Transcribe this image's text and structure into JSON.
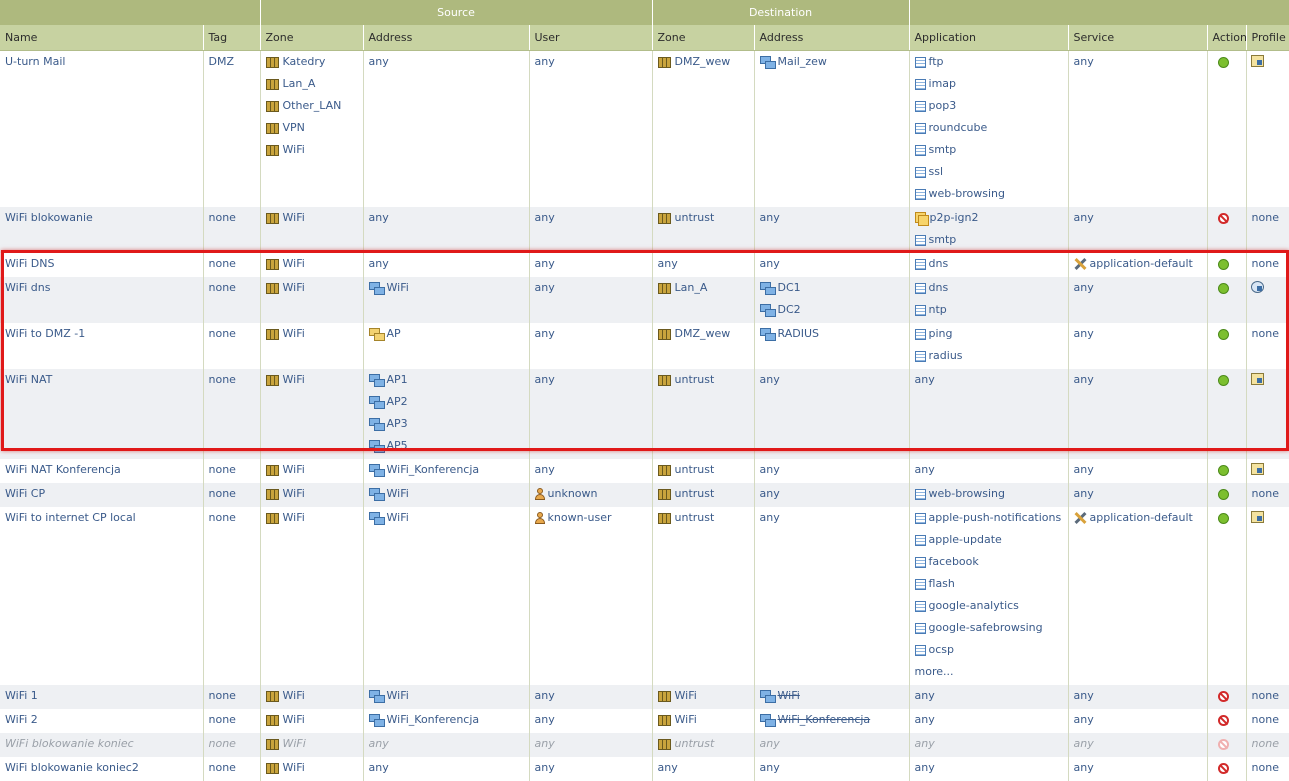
{
  "header": {
    "group_source": "Source",
    "group_destination": "Destination",
    "columns": [
      "Name",
      "Tag",
      "Zone",
      "Address",
      "User",
      "Zone",
      "Address",
      "Application",
      "Service",
      "Action",
      "Profile"
    ]
  },
  "rules": [
    {
      "name": "U-turn Mail",
      "tag": "DMZ",
      "src_zone": [
        "Katedry",
        "Lan_A",
        "Other_LAN",
        "VPN",
        "WiFi"
      ],
      "src_addr": [
        {
          "t": "text",
          "v": "any"
        }
      ],
      "user": [
        {
          "t": "text",
          "v": "any"
        }
      ],
      "dst_zone": [
        {
          "t": "zone",
          "v": "DMZ_wew"
        }
      ],
      "dst_addr": [
        {
          "t": "addr",
          "v": "Mail_zew"
        }
      ],
      "app": [
        {
          "t": "app",
          "v": "ftp"
        },
        {
          "t": "app",
          "v": "imap"
        },
        {
          "t": "app",
          "v": "pop3"
        },
        {
          "t": "app",
          "v": "roundcube"
        },
        {
          "t": "app",
          "v": "smtp"
        },
        {
          "t": "app",
          "v": "ssl"
        },
        {
          "t": "app",
          "v": "web-browsing"
        }
      ],
      "service": [
        {
          "t": "text",
          "v": "any"
        }
      ],
      "action": "allow",
      "profile": "group"
    },
    {
      "name": "WiFi blokowanie",
      "tag": "none",
      "src_zone": [
        "WiFi"
      ],
      "src_addr": [
        {
          "t": "text",
          "v": "any"
        }
      ],
      "user": [
        {
          "t": "text",
          "v": "any"
        }
      ],
      "dst_zone": [
        {
          "t": "zone",
          "v": "untrust"
        }
      ],
      "dst_addr": [
        {
          "t": "text",
          "v": "any"
        }
      ],
      "app": [
        {
          "t": "appgrp",
          "v": "p2p-ign2"
        },
        {
          "t": "app",
          "v": "smtp"
        }
      ],
      "service": [
        {
          "t": "text",
          "v": "any"
        }
      ],
      "action": "deny",
      "profile": "none"
    },
    {
      "name": "WiFi DNS",
      "tag": "none",
      "src_zone": [
        "WiFi"
      ],
      "src_addr": [
        {
          "t": "text",
          "v": "any"
        }
      ],
      "user": [
        {
          "t": "text",
          "v": "any"
        }
      ],
      "dst_zone": [
        {
          "t": "text",
          "v": "any"
        }
      ],
      "dst_addr": [
        {
          "t": "text",
          "v": "any"
        }
      ],
      "app": [
        {
          "t": "app",
          "v": "dns"
        }
      ],
      "service": [
        {
          "t": "svc",
          "v": "application-default"
        }
      ],
      "action": "allow",
      "profile": "none"
    },
    {
      "name": "WiFi dns",
      "tag": "none",
      "src_zone": [
        "WiFi"
      ],
      "src_addr": [
        {
          "t": "addr",
          "v": "WiFi"
        }
      ],
      "user": [
        {
          "t": "text",
          "v": "any"
        }
      ],
      "dst_zone": [
        {
          "t": "zone",
          "v": "Lan_A"
        }
      ],
      "dst_addr": [
        {
          "t": "addr",
          "v": "DC1"
        },
        {
          "t": "addr",
          "v": "DC2"
        }
      ],
      "app": [
        {
          "t": "app",
          "v": "dns"
        },
        {
          "t": "app",
          "v": "ntp"
        }
      ],
      "service": [
        {
          "t": "text",
          "v": "any"
        }
      ],
      "action": "allow",
      "profile": "mag"
    },
    {
      "name": "WiFi to DMZ -1",
      "tag": "none",
      "src_zone": [
        "WiFi"
      ],
      "src_addr": [
        {
          "t": "addrgrp",
          "v": "AP"
        }
      ],
      "user": [
        {
          "t": "text",
          "v": "any"
        }
      ],
      "dst_zone": [
        {
          "t": "zone",
          "v": "DMZ_wew"
        }
      ],
      "dst_addr": [
        {
          "t": "addr",
          "v": "RADIUS"
        }
      ],
      "app": [
        {
          "t": "app",
          "v": "ping"
        },
        {
          "t": "app",
          "v": "radius"
        }
      ],
      "service": [
        {
          "t": "text",
          "v": "any"
        }
      ],
      "action": "allow",
      "profile": "none"
    },
    {
      "name": "WiFi NAT",
      "tag": "none",
      "src_zone": [
        "WiFi"
      ],
      "src_addr": [
        {
          "t": "addr",
          "v": "AP1"
        },
        {
          "t": "addr",
          "v": "AP2"
        },
        {
          "t": "addr",
          "v": "AP3"
        },
        {
          "t": "addr",
          "v": "AP5"
        }
      ],
      "user": [
        {
          "t": "text",
          "v": "any"
        }
      ],
      "dst_zone": [
        {
          "t": "zone",
          "v": "untrust"
        }
      ],
      "dst_addr": [
        {
          "t": "text",
          "v": "any"
        }
      ],
      "app": [
        {
          "t": "text",
          "v": "any"
        }
      ],
      "service": [
        {
          "t": "text",
          "v": "any"
        }
      ],
      "action": "allow",
      "profile": "group"
    },
    {
      "name": "WiFi NAT Konferencja",
      "tag": "none",
      "src_zone": [
        "WiFi"
      ],
      "src_addr": [
        {
          "t": "addr",
          "v": "WiFi_Konferencja"
        }
      ],
      "user": [
        {
          "t": "text",
          "v": "any"
        }
      ],
      "dst_zone": [
        {
          "t": "zone",
          "v": "untrust"
        }
      ],
      "dst_addr": [
        {
          "t": "text",
          "v": "any"
        }
      ],
      "app": [
        {
          "t": "text",
          "v": "any"
        }
      ],
      "service": [
        {
          "t": "text",
          "v": "any"
        }
      ],
      "action": "allow",
      "profile": "group"
    },
    {
      "name": "WiFi CP",
      "tag": "none",
      "src_zone": [
        "WiFi"
      ],
      "src_addr": [
        {
          "t": "addr",
          "v": "WiFi"
        }
      ],
      "user": [
        {
          "t": "user",
          "v": "unknown"
        }
      ],
      "dst_zone": [
        {
          "t": "zone",
          "v": "untrust"
        }
      ],
      "dst_addr": [
        {
          "t": "text",
          "v": "any"
        }
      ],
      "app": [
        {
          "t": "app",
          "v": "web-browsing"
        }
      ],
      "service": [
        {
          "t": "text",
          "v": "any"
        }
      ],
      "action": "allow",
      "profile": "none"
    },
    {
      "name": "WiFi to internet CP local",
      "tag": "none",
      "src_zone": [
        "WiFi"
      ],
      "src_addr": [
        {
          "t": "addr",
          "v": "WiFi"
        }
      ],
      "user": [
        {
          "t": "user",
          "v": "known-user"
        }
      ],
      "dst_zone": [
        {
          "t": "zone",
          "v": "untrust"
        }
      ],
      "dst_addr": [
        {
          "t": "text",
          "v": "any"
        }
      ],
      "app": [
        {
          "t": "app",
          "v": "apple-push-notifications"
        },
        {
          "t": "app",
          "v": "apple-update"
        },
        {
          "t": "app",
          "v": "facebook"
        },
        {
          "t": "app",
          "v": "flash"
        },
        {
          "t": "app",
          "v": "google-analytics"
        },
        {
          "t": "app",
          "v": "google-safebrowsing"
        },
        {
          "t": "app",
          "v": "ocsp"
        },
        {
          "t": "text",
          "v": "more..."
        }
      ],
      "service": [
        {
          "t": "svc",
          "v": "application-default"
        }
      ],
      "action": "allow",
      "profile": "group"
    },
    {
      "name": "WiFi 1",
      "tag": "none",
      "src_zone": [
        "WiFi"
      ],
      "src_addr": [
        {
          "t": "addr",
          "v": "WiFi"
        }
      ],
      "user": [
        {
          "t": "text",
          "v": "any"
        }
      ],
      "dst_zone": [
        {
          "t": "zone",
          "v": "WiFi"
        }
      ],
      "dst_addr": [
        {
          "t": "addr",
          "v": "WiFi",
          "strike": true
        }
      ],
      "app": [
        {
          "t": "text",
          "v": "any"
        }
      ],
      "service": [
        {
          "t": "text",
          "v": "any"
        }
      ],
      "action": "deny",
      "profile": "none"
    },
    {
      "name": "WiFi 2",
      "tag": "none",
      "src_zone": [
        "WiFi"
      ],
      "src_addr": [
        {
          "t": "addr",
          "v": "WiFi_Konferencja"
        }
      ],
      "user": [
        {
          "t": "text",
          "v": "any"
        }
      ],
      "dst_zone": [
        {
          "t": "zone",
          "v": "WiFi"
        }
      ],
      "dst_addr": [
        {
          "t": "addr",
          "v": "WiFi_Konferencja",
          "strike": true
        }
      ],
      "app": [
        {
          "t": "text",
          "v": "any"
        }
      ],
      "service": [
        {
          "t": "text",
          "v": "any"
        }
      ],
      "action": "deny",
      "profile": "none"
    },
    {
      "name": "WiFi blokowanie koniec",
      "tag": "none",
      "disabled": true,
      "src_zone": [
        "WiFi"
      ],
      "src_addr": [
        {
          "t": "text",
          "v": "any"
        }
      ],
      "user": [
        {
          "t": "text",
          "v": "any"
        }
      ],
      "dst_zone": [
        {
          "t": "zone",
          "v": "untrust"
        }
      ],
      "dst_addr": [
        {
          "t": "text",
          "v": "any"
        }
      ],
      "app": [
        {
          "t": "text",
          "v": "any"
        }
      ],
      "service": [
        {
          "t": "text",
          "v": "any"
        }
      ],
      "action": "deny-dim",
      "profile": "none"
    },
    {
      "name": "WiFi blokowanie koniec2",
      "tag": "none",
      "src_zone": [
        "WiFi"
      ],
      "src_addr": [
        {
          "t": "text",
          "v": "any"
        }
      ],
      "user": [
        {
          "t": "text",
          "v": "any"
        }
      ],
      "dst_zone": [
        {
          "t": "text",
          "v": "any"
        }
      ],
      "dst_addr": [
        {
          "t": "text",
          "v": "any"
        }
      ],
      "app": [
        {
          "t": "text",
          "v": "any"
        }
      ],
      "service": [
        {
          "t": "text",
          "v": "any"
        }
      ],
      "action": "deny",
      "profile": "none"
    }
  ]
}
